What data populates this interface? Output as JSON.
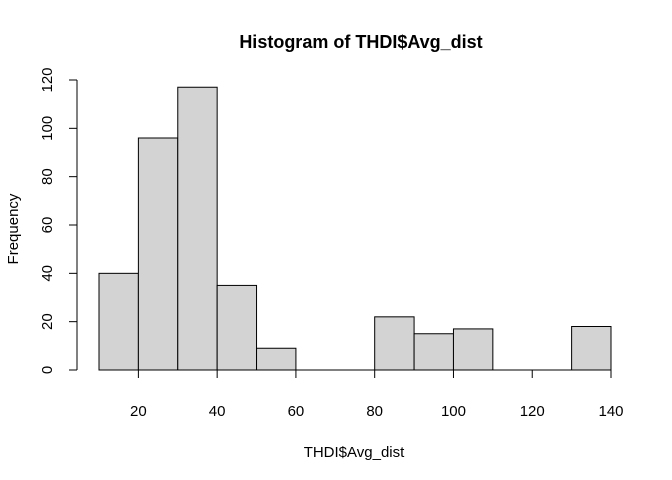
{
  "chart_data": {
    "type": "bar",
    "title": "Histogram of THDI$Avg_dist",
    "xlabel": "THDI$Avg_dist",
    "ylabel": "Frequency",
    "bin_edges": [
      10,
      20,
      30,
      40,
      50,
      60,
      70,
      80,
      90,
      100,
      110,
      120,
      130,
      140
    ],
    "values": [
      40,
      96,
      117,
      35,
      9,
      0,
      0,
      22,
      15,
      17,
      0,
      0,
      18
    ],
    "xlim": [
      10,
      140
    ],
    "ylim": [
      0,
      120
    ],
    "x_ticks": [
      20,
      40,
      60,
      80,
      100,
      120,
      140
    ],
    "y_ticks": [
      0,
      20,
      40,
      60,
      80,
      100,
      120
    ],
    "bar_fill": "#d3d3d3",
    "bar_stroke": "#000000",
    "grid": false,
    "legend": "none"
  }
}
